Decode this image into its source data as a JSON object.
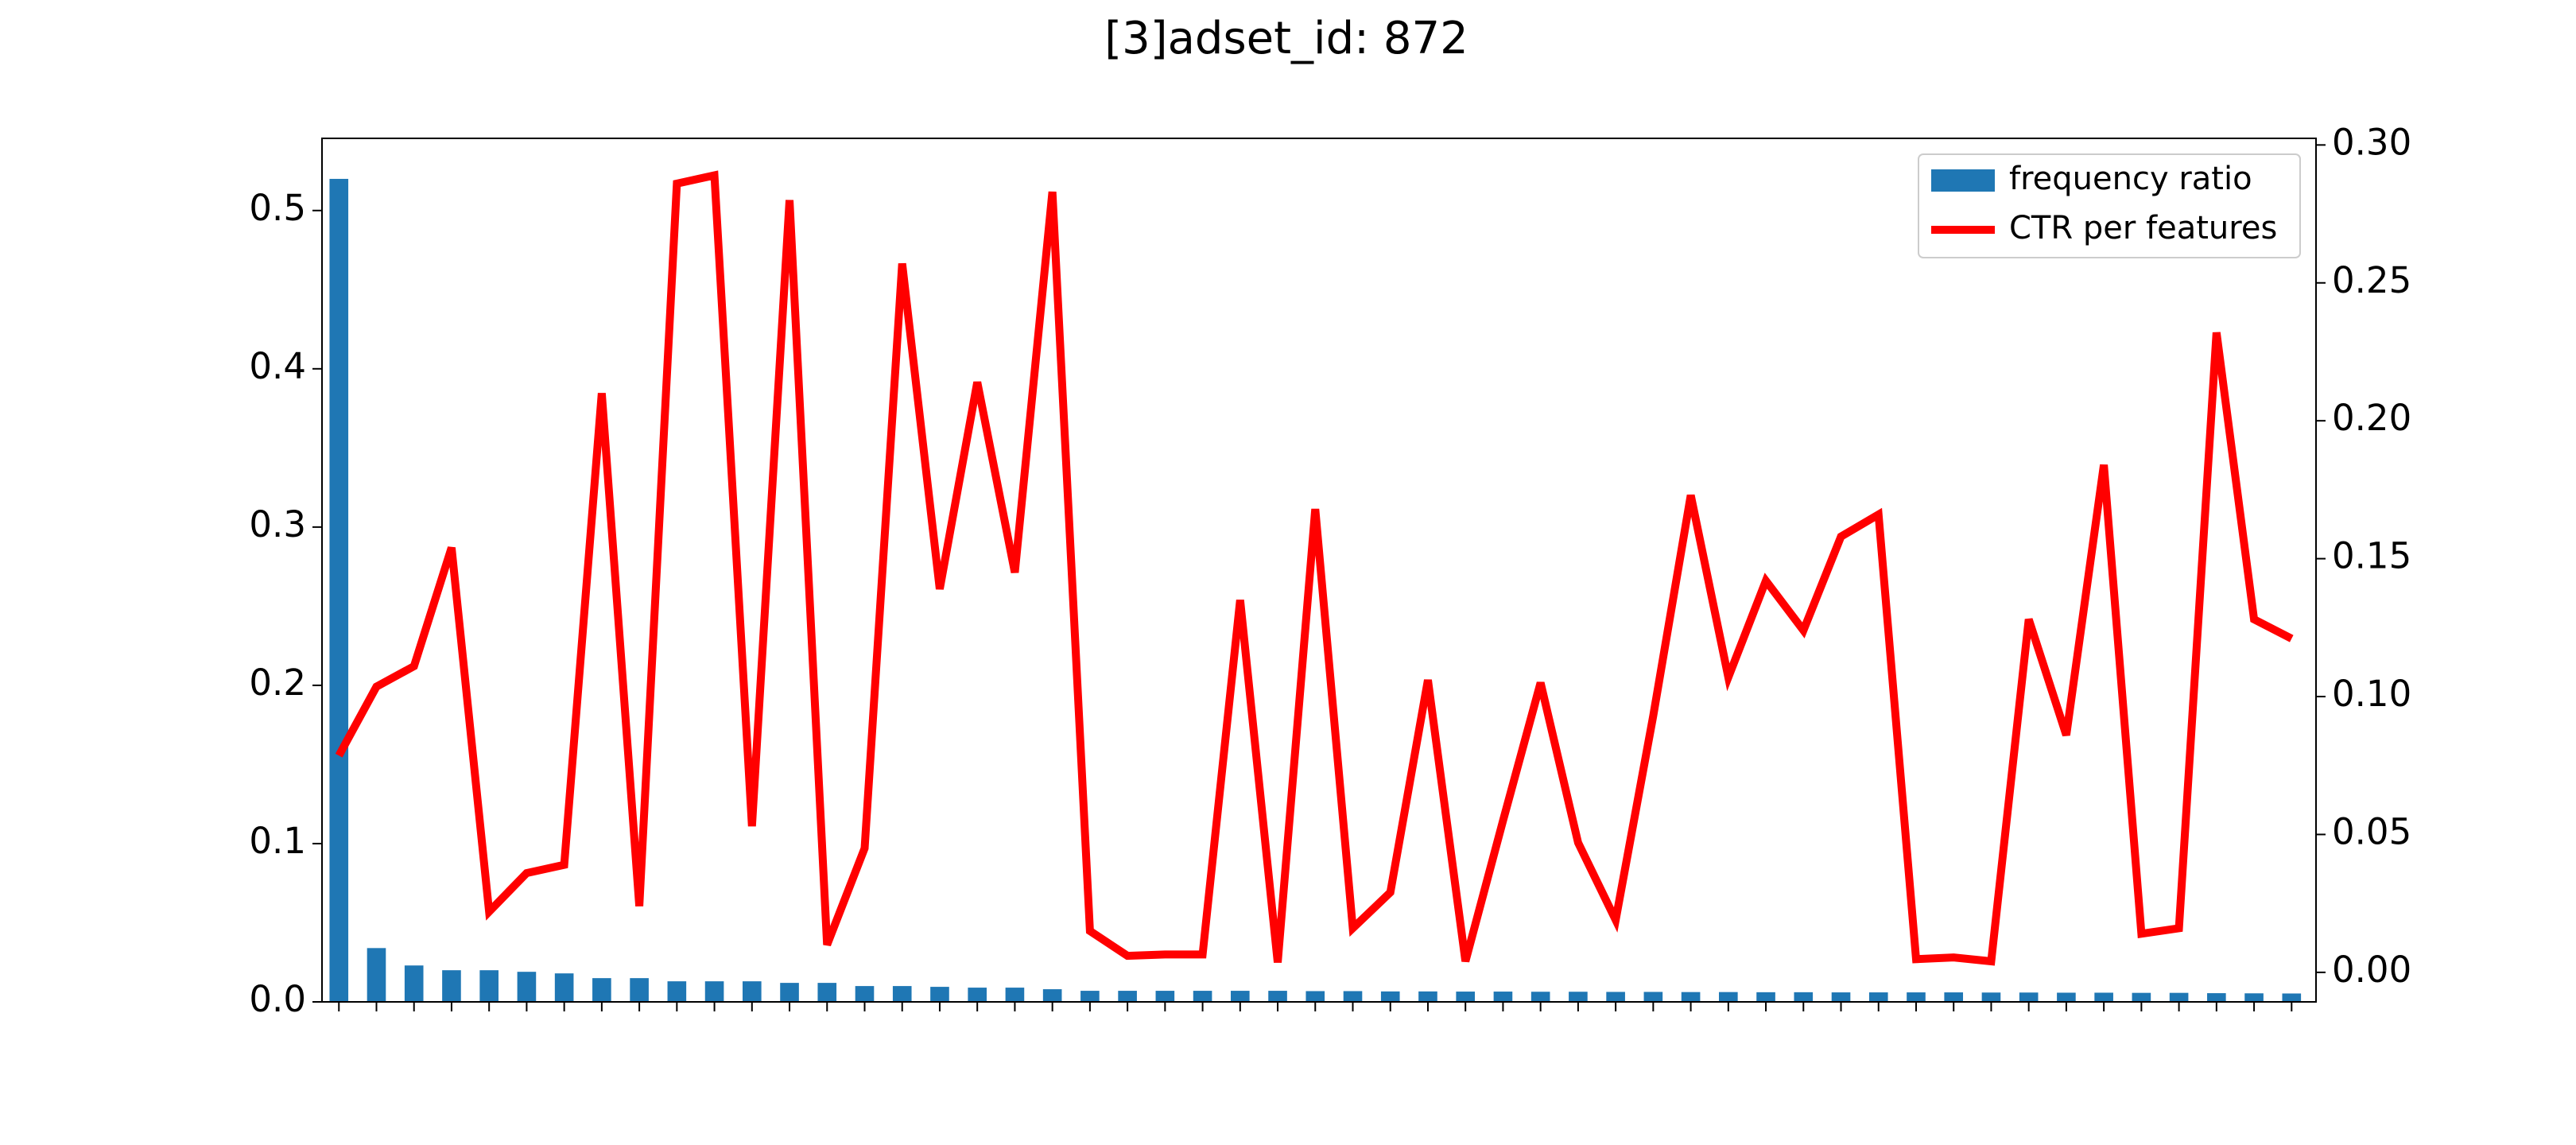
{
  "chart_data": {
    "type": "bar_line",
    "title": "[3]adset_id: 872",
    "categories": [
      null,
      null,
      null,
      null,
      null,
      null,
      null,
      null,
      null,
      null,
      null,
      null,
      null,
      null,
      null,
      null,
      null,
      null,
      null,
      null,
      null,
      null,
      null,
      null,
      null,
      null,
      null,
      null,
      null,
      null,
      null,
      null,
      null,
      null,
      null,
      null,
      null,
      null,
      null,
      null,
      null,
      null,
      null,
      null,
      null,
      null,
      null,
      null,
      null,
      null,
      null,
      null,
      null
    ],
    "series": [
      {
        "name": "frequency ratio",
        "color": "#1f77b4",
        "type": "bar",
        "values": [
          0.52,
          0.034,
          0.023,
          0.02,
          0.02,
          0.019,
          0.018,
          0.015,
          0.015,
          0.013,
          0.013,
          0.013,
          0.012,
          0.012,
          0.01,
          0.01,
          0.0095,
          0.009,
          0.009,
          0.008,
          0.007,
          0.007,
          0.007,
          0.007,
          0.007,
          0.007,
          0.0068,
          0.0068,
          0.0066,
          0.0066,
          0.0065,
          0.0065,
          0.0064,
          0.0064,
          0.0063,
          0.0063,
          0.0062,
          0.0062,
          0.0061,
          0.0061,
          0.006,
          0.006,
          0.006,
          0.006,
          0.0059,
          0.0059,
          0.0058,
          0.0058,
          0.0057,
          0.0057,
          0.0055,
          0.0054,
          0.0053
        ]
      },
      {
        "name": "CTR per features",
        "color": "#ff0000",
        "type": "line",
        "axis": "y2",
        "values": [
          0.0786,
          0.1036,
          0.111,
          0.154,
          0.022,
          0.036,
          0.039,
          0.21,
          0.024,
          0.286,
          0.289,
          0.053,
          0.28,
          0.01,
          0.045,
          0.257,
          0.139,
          0.214,
          0.145,
          0.283,
          0.015,
          0.006,
          0.0065,
          0.0065,
          0.135,
          0.0036,
          0.168,
          0.016,
          0.029,
          0.106,
          0.004,
          0.055,
          0.105,
          0.047,
          0.019,
          0.093,
          0.173,
          0.107,
          0.142,
          0.124,
          0.158,
          0.166,
          0.0048,
          0.0054,
          0.004,
          0.128,
          0.086,
          0.184,
          0.014,
          0.016,
          0.232,
          0.128,
          0.121
        ]
      }
    ],
    "ylim": [
      0,
      0.5456
    ],
    "yticks": [
      {
        "value": 0,
        "label": "0.0"
      },
      0.1,
      0.2,
      0.3,
      0.4,
      0.5
    ],
    "y2lim": [
      -0.0107,
      0.3024
    ],
    "y2ticks": [
      {
        "value": 0,
        "label": "0.00"
      },
      0.05,
      {
        "value": 0.1,
        "label": "0.10"
      },
      0.15,
      {
        "value": 0.2,
        "label": "0.20"
      },
      0.25,
      {
        "value": 0.3,
        "label": "0.30"
      }
    ],
    "legend": "upper right"
  }
}
